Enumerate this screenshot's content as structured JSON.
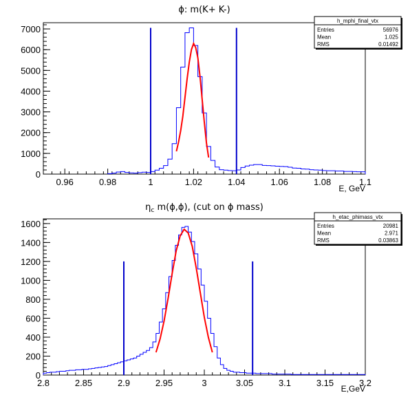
{
  "chart_data": [
    {
      "type": "histogram",
      "title": "ϕ: m(K+ K-)",
      "xlabel": "E, GeV",
      "ylabel": "",
      "xlim": [
        0.95,
        1.1
      ],
      "ylim": [
        0,
        7300
      ],
      "x_ticks": [
        "0.96",
        "0.98",
        "1",
        "1.02",
        "1.04",
        "1.06",
        "1.08",
        "1.1"
      ],
      "y_ticks": [
        "0",
        "1000",
        "2000",
        "3000",
        "4000",
        "5000",
        "6000",
        "7000"
      ],
      "stats": {
        "name": "h_mphi_final_vtx",
        "rows": [
          {
            "label": "Entries",
            "value": "56976"
          },
          {
            "label": "Mean",
            "value": "1.025"
          },
          {
            "label": "RMS",
            "value": "0.01492"
          }
        ]
      },
      "bins": {
        "x_start": 0.98,
        "width": 0.002,
        "values": [
          20,
          50,
          100,
          120,
          80,
          60,
          50,
          70,
          90,
          80,
          120,
          190,
          280,
          410,
          720,
          1470,
          3200,
          5160,
          6820,
          7050,
          6200,
          4700,
          2950,
          1330,
          660,
          340,
          210,
          190,
          170,
          160,
          200,
          320,
          390,
          430,
          460,
          460,
          420,
          410,
          400,
          380,
          370,
          360,
          330,
          290,
          280,
          250,
          240,
          210,
          200,
          190,
          170,
          160,
          160,
          150,
          150,
          130,
          130,
          120,
          110,
          110
        ]
      },
      "cut_lines": {
        "x": [
          1.0,
          1.04
        ],
        "top": 7050
      },
      "fit": {
        "x": [
          1.012,
          1.013,
          1.014,
          1.015,
          1.016,
          1.017,
          1.018,
          1.019,
          1.02,
          1.021,
          1.022,
          1.023,
          1.024,
          1.025,
          1.026,
          1.027
        ],
        "y": [
          1100,
          1550,
          2100,
          2800,
          3700,
          4600,
          5400,
          6000,
          6300,
          6100,
          5600,
          4700,
          3600,
          2500,
          1500,
          800
        ]
      },
      "colors": {
        "hist": "#0000ff",
        "cut": "#0000cc",
        "fit": "#ff0000"
      }
    },
    {
      "type": "histogram",
      "title": "η_c m(ϕ,ϕ), (cut on ϕ mass)",
      "xlabel": "E,GeV",
      "ylabel": "",
      "xlim": [
        2.8,
        3.2
      ],
      "ylim": [
        0,
        1650
      ],
      "x_ticks": [
        "2.8",
        "2.85",
        "2.9",
        "2.95",
        "3",
        "3.05",
        "3.1",
        "3.15",
        "3.2"
      ],
      "y_ticks": [
        "0",
        "200",
        "400",
        "600",
        "800",
        "1000",
        "1200",
        "1400",
        "1600"
      ],
      "stats": {
        "name": "h_etac_phimass_vtx",
        "rows": [
          {
            "label": "Entries",
            "value": "20981"
          },
          {
            "label": "Mean",
            "value": "2.971"
          },
          {
            "label": "RMS",
            "value": "0.03863"
          }
        ]
      },
      "bins": {
        "x_start": 2.8,
        "width": 0.004,
        "values": [
          20,
          25,
          30,
          30,
          35,
          40,
          40,
          45,
          50,
          50,
          55,
          55,
          60,
          60,
          65,
          70,
          75,
          80,
          85,
          90,
          100,
          110,
          120,
          130,
          140,
          150,
          160,
          170,
          180,
          200,
          220,
          240,
          260,
          290,
          350,
          440,
          560,
          700,
          870,
          1040,
          1210,
          1370,
          1480,
          1560,
          1570,
          1510,
          1410,
          1280,
          1120,
          950,
          780,
          600,
          440,
          300,
          180,
          110,
          70,
          50,
          40,
          30,
          30,
          25,
          25,
          20,
          20,
          20,
          15,
          15,
          15,
          15,
          15,
          10,
          10,
          10,
          10,
          10,
          10,
          5,
          5,
          5,
          5,
          5,
          5,
          5,
          5,
          5,
          5,
          5,
          5,
          5,
          5,
          5,
          5,
          5,
          5,
          5,
          5,
          5,
          5,
          5
        ]
      },
      "cut_lines": {
        "x": [
          2.9,
          3.06
        ],
        "top": 1200
      },
      "fit": {
        "x": [
          2.94,
          2.945,
          2.95,
          2.955,
          2.96,
          2.965,
          2.97,
          2.975,
          2.98,
          2.985,
          2.99,
          2.995,
          3.0,
          3.005,
          3.01
        ],
        "y": [
          240,
          380,
          570,
          810,
          1070,
          1310,
          1470,
          1540,
          1500,
          1360,
          1130,
          870,
          610,
          400,
          240
        ]
      },
      "colors": {
        "hist": "#0000ff",
        "cut": "#0000cc",
        "fit": "#ff0000"
      }
    }
  ]
}
